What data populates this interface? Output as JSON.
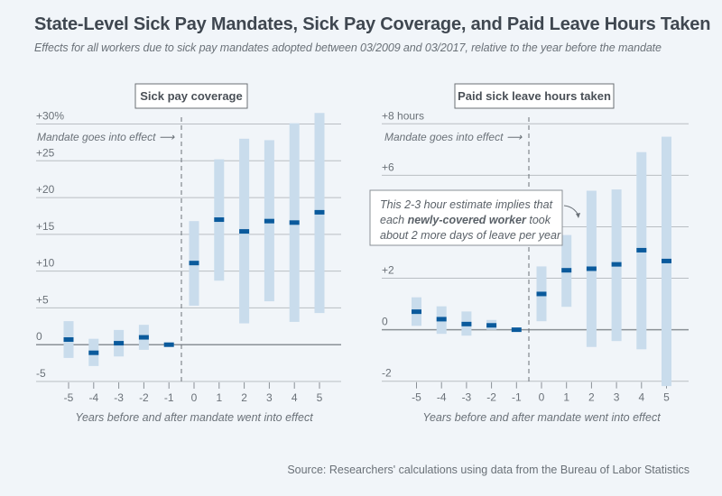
{
  "header": {
    "title": "State-Level Sick Pay Mandates, Sick Pay Coverage, and Paid Leave Hours Taken",
    "subtitle": "Effects for all workers due to sick pay mandates adopted between 03/2009 and 03/2017, relative to the year before the mandate"
  },
  "footer": {
    "source": "Source: Researchers' calculations using data from the Bureau of Labor Statistics"
  },
  "colors": {
    "estimate": "#0a5a9c",
    "confidence_interval": "#c9dcec",
    "background": "#f1f5f9"
  },
  "chart_data": [
    {
      "type": "scatter",
      "title": "Sick pay coverage",
      "xlabel": "Years before and after mandate went into effect",
      "ylabel": "",
      "x": [
        -5,
        -4,
        -3,
        -2,
        -1,
        0,
        1,
        2,
        3,
        4,
        5
      ],
      "xtick_labels": [
        "-5",
        "-4",
        "-3",
        "-2",
        "-1",
        "0",
        "1",
        "2",
        "3",
        "4",
        "5"
      ],
      "ylim": [
        -5,
        30
      ],
      "yticks": [
        -5,
        0,
        5,
        10,
        15,
        20,
        25,
        30
      ],
      "ytick_labels": [
        "-5",
        "0",
        "+5",
        "+10",
        "+15",
        "+20",
        "+25",
        "+30%"
      ],
      "grid": true,
      "annotation": "Mandate goes into effect",
      "mandate_x": -0.5,
      "series": [
        {
          "name": "Estimate",
          "values": [
            0.7,
            -1.1,
            0.2,
            1.0,
            0.0,
            11.1,
            17.0,
            15.4,
            16.8,
            16.6,
            18.0
          ]
        },
        {
          "name": "CI lower",
          "values": [
            -1.8,
            -2.9,
            -1.6,
            -0.7,
            0.0,
            5.3,
            8.7,
            2.9,
            5.9,
            3.1,
            4.3
          ]
        },
        {
          "name": "CI upper",
          "values": [
            3.2,
            0.8,
            2.0,
            2.7,
            0.0,
            16.8,
            25.2,
            28.0,
            27.8,
            30.1,
            31.5
          ]
        }
      ]
    },
    {
      "type": "scatter",
      "title": "Paid sick leave hours taken",
      "xlabel": "Years before and after mandate went into effect",
      "ylabel": "",
      "x": [
        -5,
        -4,
        -3,
        -2,
        -1,
        0,
        1,
        2,
        3,
        4,
        5
      ],
      "xtick_labels": [
        "-5",
        "-4",
        "-3",
        "-2",
        "-1",
        "0",
        "1",
        "2",
        "3",
        "4",
        "5"
      ],
      "ylim": [
        -2,
        8
      ],
      "yticks": [
        -2,
        0,
        2,
        4,
        6,
        8
      ],
      "ytick_labels": [
        "-2",
        "0",
        "+2",
        "",
        "+6",
        "+8 hours"
      ],
      "grid": true,
      "annotation": "Mandate goes into effect",
      "mandate_x": -0.5,
      "callout": {
        "line1": "This 2-3 hour estimate implies that",
        "line2_pre": "each ",
        "line2_bold": "newly-covered worker",
        "line2_post": " took",
        "line3": "about 2 more days of leave per year"
      },
      "series": [
        {
          "name": "Estimate",
          "values": [
            0.7,
            0.41,
            0.22,
            0.17,
            0.0,
            1.39,
            2.31,
            2.37,
            2.54,
            3.09,
            2.67
          ]
        },
        {
          "name": "CI lower",
          "values": [
            0.15,
            -0.16,
            -0.23,
            0.0,
            0.0,
            0.33,
            0.89,
            -0.67,
            -0.44,
            -0.76,
            -2.19
          ]
        },
        {
          "name": "CI upper",
          "values": [
            1.26,
            0.91,
            0.71,
            0.38,
            0.0,
            2.46,
            3.68,
            5.4,
            5.45,
            6.9,
            7.5
          ]
        }
      ]
    }
  ]
}
